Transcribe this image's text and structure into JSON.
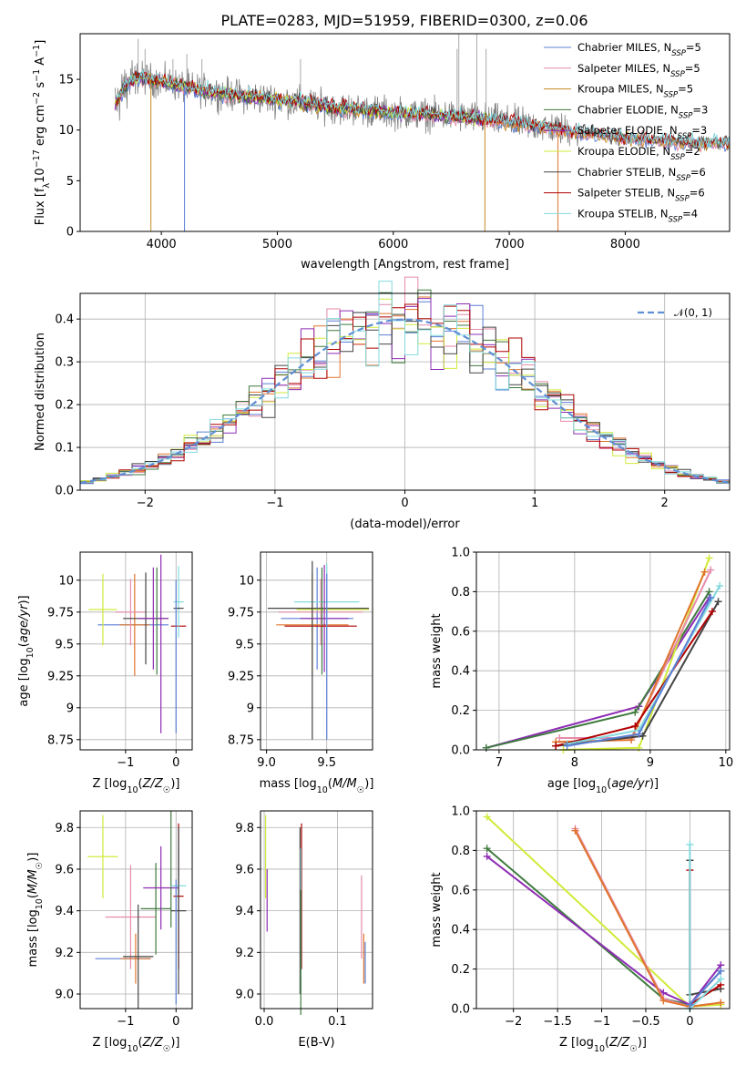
{
  "colors": {
    "chab_miles": "#5b7fd6",
    "salp_miles": "#e68aaa",
    "krou_miles": "#c48a25",
    "chab_elodie": "#3f7a3f",
    "salp_elodie": "#8e2cb4",
    "krou_elodie": "#d2ea3a",
    "chab_stelib": "#444444",
    "salp_stelib": "#b00000",
    "krou_stelib": "#82d9de",
    "orange": "#e0752d",
    "normal": "#5f8fd4",
    "data": "#808080"
  },
  "chart_data": [
    {
      "id": "spectrum",
      "type": "line",
      "title": "PLATE=0283, MJD=51959, FIBERID=0300, z=0.06",
      "xlabel": "wavelength [Angstrom, rest frame]",
      "ylabel": "Flux [f_λ 10^-17 erg cm^-2 s^-1 A^-1]",
      "xlim": [
        3300,
        8900
      ],
      "ylim": [
        0,
        19.5
      ],
      "xticks": [
        4000,
        5000,
        6000,
        7000,
        8000
      ],
      "yticks": [
        0,
        5,
        10,
        15
      ],
      "legend": [
        {
          "label": "Chabrier MILES, N",
          "sub": "SSP",
          "suffix": "=5",
          "color": "chab_miles"
        },
        {
          "label": "Salpeter MILES, N",
          "sub": "SSP",
          "suffix": "=5",
          "color": "salp_miles"
        },
        {
          "label": "Kroupa MILES, N",
          "sub": "SSP",
          "suffix": "=5",
          "color": "krou_miles"
        },
        {
          "label": "Chabrier ELODIE, N",
          "sub": "SSP",
          "suffix": "=3",
          "color": "chab_elodie"
        },
        {
          "label": "Salpeter ELODIE, N",
          "sub": "SSP",
          "suffix": "=3",
          "color": "salp_elodie"
        },
        {
          "label": "Kroupa ELODIE, N",
          "sub": "SSP",
          "suffix": "=2",
          "color": "krou_elodie"
        },
        {
          "label": "Chabrier STELIB, N",
          "sub": "SSP",
          "suffix": "=6",
          "color": "chab_stelib"
        },
        {
          "label": "Salpeter STELIB, N",
          "sub": "SSP",
          "suffix": "=6",
          "color": "salp_stelib"
        },
        {
          "label": "Kroupa STELIB, N",
          "sub": "SSP",
          "suffix": "=4",
          "color": "krou_stelib"
        }
      ],
      "continuum": [
        [
          3600,
          12.5
        ],
        [
          3700,
          14.5
        ],
        [
          3800,
          15.2
        ],
        [
          4000,
          14.8
        ],
        [
          4300,
          14.0
        ],
        [
          4600,
          13.5
        ],
        [
          5000,
          13.0
        ],
        [
          5500,
          12.2
        ],
        [
          6000,
          11.7
        ],
        [
          6500,
          11.4
        ],
        [
          7000,
          10.8
        ],
        [
          7500,
          10.0
        ],
        [
          8000,
          9.2
        ],
        [
          8500,
          8.8
        ],
        [
          8900,
          8.7
        ]
      ]
    },
    {
      "id": "residuals",
      "type": "step-histogram",
      "xlabel": "(data-model)/error",
      "ylabel": "Normed distribution",
      "xlim": [
        -2.5,
        2.5
      ],
      "ylim": [
        0,
        0.46
      ],
      "xticks": [
        -2,
        -1,
        0,
        1,
        2
      ],
      "yticks": [
        0.0,
        0.1,
        0.2,
        0.3,
        0.4
      ],
      "legend_label": "𝒩(0, 1)",
      "gaussian": {
        "mean": 0,
        "sigma": 1,
        "color": "normal"
      },
      "bin_width": 0.1
    },
    {
      "id": "age_vs_Z",
      "type": "errorbar",
      "xlabel": "Z [log10(Z/Z☉)]",
      "ylabel": "age [log10(age/yr)]",
      "xlim": [
        -1.9,
        0.32
      ],
      "ylim": [
        8.67,
        10.22
      ],
      "xticks": [
        -1,
        0
      ],
      "yticks": [
        8.75,
        9.0,
        9.25,
        9.5,
        9.75,
        10.0
      ],
      "points": [
        {
          "c": "chab_miles",
          "x": -0.85,
          "xerr": 0.7,
          "y": 9.65,
          "yerr": 0.0
        },
        {
          "c": "krou_elodie",
          "x": -1.45,
          "xerr": 0.28,
          "y": 9.77,
          "yerr": 0.28
        },
        {
          "c": "orange",
          "x": -0.82,
          "xerr": 0.3,
          "y": 9.65,
          "yerr": 0.4
        },
        {
          "c": "salp_miles",
          "x": -0.9,
          "xerr": 0.3,
          "y": 9.75,
          "yerr": 0.26
        },
        {
          "c": "chab_stelib",
          "x": -0.6,
          "xerr": 0.45,
          "y": 9.7,
          "yerr": 0.36
        },
        {
          "c": "salp_elodie",
          "x": -0.45,
          "xerr": 0.3,
          "y": 9.7,
          "yerr": 0.4
        },
        {
          "c": "chab_elodie",
          "x": -0.38,
          "xerr": 0.0,
          "y": 9.68,
          "yerr": 0.42
        },
        {
          "c": "salp_elodie",
          "x": -0.3,
          "xerr": 0.0,
          "y": 9.5,
          "yerr": 0.7
        },
        {
          "c": "salp_stelib",
          "x": 0.05,
          "xerr": 0.15,
          "y": 9.64,
          "yerr": 0.0
        },
        {
          "c": "krou_stelib",
          "x": 0.05,
          "xerr": 0.1,
          "y": 9.83,
          "yerr": 0.28
        },
        {
          "c": "chab_stelib",
          "x": 0.05,
          "xerr": 0.1,
          "y": 9.78,
          "yerr": 0.0
        },
        {
          "c": "chab_miles",
          "x": 0.0,
          "xerr": 0.0,
          "y": 9.4,
          "yerr": 0.6
        }
      ]
    },
    {
      "id": "age_vs_mass",
      "type": "errorbar",
      "xlabel": "mass [log10(M/M☉)]",
      "ylabel": "",
      "xlim": [
        8.95,
        9.88
      ],
      "ylim": [
        8.67,
        10.22
      ],
      "xticks": [
        9.0,
        9.5
      ],
      "yticks": [
        8.75,
        9.0,
        9.25,
        9.5,
        9.75,
        10.0
      ],
      "points": [
        {
          "c": "chab_miles",
          "x": 9.42,
          "xerr": 0.3,
          "y": 9.7,
          "yerr": 0.4
        },
        {
          "c": "orange",
          "x": 9.38,
          "xerr": 0.3,
          "y": 9.65,
          "yerr": 0.4
        },
        {
          "c": "salp_miles",
          "x": 9.45,
          "xerr": 0.35,
          "y": 9.75,
          "yerr": 0.26
        },
        {
          "c": "krou_elodie",
          "x": 9.55,
          "xerr": 0.3,
          "y": 9.77,
          "yerr": 0.0
        },
        {
          "c": "krou_stelib",
          "x": 9.5,
          "xerr": 0.27,
          "y": 9.83,
          "yerr": 0.3
        },
        {
          "c": "chab_stelib",
          "x": 9.43,
          "xerr": 0.42,
          "y": 9.78,
          "yerr": 0.0
        },
        {
          "c": "salp_elodie",
          "x": 9.48,
          "xerr": 0.2,
          "y": 9.7,
          "yerr": 0.42
        },
        {
          "c": "chab_elodie",
          "x": 9.46,
          "xerr": 0.0,
          "y": 9.68,
          "yerr": 0.42
        },
        {
          "c": "salp_stelib",
          "x": 9.45,
          "xerr": 0.3,
          "y": 9.64,
          "yerr": 0.0
        },
        {
          "c": "chab_stelib",
          "x": 9.38,
          "xerr": 0.0,
          "y": 9.45,
          "yerr": 0.7
        },
        {
          "c": "chab_miles",
          "x": 9.5,
          "xerr": 0.0,
          "y": 9.4,
          "yerr": 0.65
        }
      ]
    },
    {
      "id": "mass_weight_vs_age",
      "type": "line",
      "xlabel": "age [log10(age/yr)]",
      "ylabel": "mass weight",
      "xlim": [
        6.7,
        10.05
      ],
      "ylim": [
        0,
        1.0
      ],
      "xticks": [
        7,
        8,
        9,
        10
      ],
      "yticks": [
        0.0,
        0.2,
        0.4,
        0.6,
        0.8,
        1.0
      ],
      "series": [
        {
          "c": "salp_elodie",
          "x": [
            6.83,
            8.85,
            9.78
          ],
          "y": [
            0.01,
            0.22,
            0.77
          ]
        },
        {
          "c": "chab_elodie",
          "x": [
            6.83,
            8.8,
            9.78
          ],
          "y": [
            0.01,
            0.19,
            0.8
          ]
        },
        {
          "c": "krou_elodie",
          "x": [
            7.85,
            8.85,
            9.78
          ],
          "y": [
            0.0,
            0.01,
            0.97
          ]
        },
        {
          "c": "salp_miles",
          "x": [
            7.8,
            8.75,
            9.8
          ],
          "y": [
            0.06,
            0.06,
            0.91
          ]
        },
        {
          "c": "orange",
          "x": [
            7.75,
            8.75,
            9.72
          ],
          "y": [
            0.04,
            0.05,
            0.9
          ]
        },
        {
          "c": "chab_stelib",
          "x": [
            7.75,
            8.9,
            9.9
          ],
          "y": [
            0.02,
            0.07,
            0.75
          ]
        },
        {
          "c": "salp_stelib",
          "x": [
            7.75,
            8.8,
            9.82
          ],
          "y": [
            0.02,
            0.12,
            0.7
          ]
        },
        {
          "c": "krou_stelib",
          "x": [
            7.9,
            8.85,
            9.92
          ],
          "y": [
            0.03,
            0.1,
            0.83
          ]
        },
        {
          "c": "chab_miles",
          "x": [
            7.9,
            8.85,
            9.8
          ],
          "y": [
            0.02,
            0.08,
            0.77
          ]
        }
      ]
    },
    {
      "id": "mass_vs_Z",
      "type": "errorbar",
      "xlabel": "Z [log10(Z/Z☉)]",
      "ylabel": "mass [log10(M/M☉)]",
      "xlim": [
        -1.9,
        0.32
      ],
      "ylim": [
        8.93,
        9.88
      ],
      "xticks": [
        -1,
        0
      ],
      "yticks": [
        9.0,
        9.2,
        9.4,
        9.6,
        9.8
      ],
      "points": [
        {
          "c": "krou_elodie",
          "x": -1.45,
          "xerr": 0.3,
          "y": 9.66,
          "yerr": 0.2
        },
        {
          "c": "chab_miles",
          "x": -1.05,
          "xerr": 0.55,
          "y": 9.17,
          "yerr": 0.0
        },
        {
          "c": "salp_miles",
          "x": -0.9,
          "xerr": 0.5,
          "y": 9.37,
          "yerr": 0.25
        },
        {
          "c": "orange",
          "x": -0.8,
          "xerr": 0.3,
          "y": 9.17,
          "yerr": 0.12
        },
        {
          "c": "chab_stelib",
          "x": -0.75,
          "xerr": 0.3,
          "y": 9.18,
          "yerr": 0.25
        },
        {
          "c": "chab_elodie",
          "x": -0.4,
          "xerr": 0.3,
          "y": 9.41,
          "yerr": 0.22
        },
        {
          "c": "salp_elodie",
          "x": -0.3,
          "xerr": 0.35,
          "y": 9.51,
          "yerr": 0.2
        },
        {
          "c": "chab_elodie",
          "x": -0.1,
          "xerr": 0.0,
          "y": 9.6,
          "yerr": 0.28
        },
        {
          "c": "salp_stelib",
          "x": 0.05,
          "xerr": 0.1,
          "y": 9.47,
          "yerr": 0.35
        },
        {
          "c": "krou_stelib",
          "x": 0.05,
          "xerr": 0.15,
          "y": 9.52,
          "yerr": 0.2
        },
        {
          "c": "chab_stelib",
          "x": 0.05,
          "xerr": 0.15,
          "y": 9.4,
          "yerr": 0.4
        },
        {
          "c": "chab_miles",
          "x": 0.0,
          "xerr": 0.0,
          "y": 9.25,
          "yerr": 0.3
        }
      ]
    },
    {
      "id": "mass_vs_ebv",
      "type": "errorbar",
      "xlabel": "E(B-V)",
      "ylabel": "",
      "xlim": [
        -0.005,
        0.148
      ],
      "ylim": [
        8.93,
        9.88
      ],
      "xticks": [
        0.0,
        0.1
      ],
      "yticks": [
        9.0,
        9.2,
        9.4,
        9.6,
        9.8
      ],
      "points": [
        {
          "c": "krou_elodie",
          "x": 0.002,
          "xerr": 0.0,
          "y": 9.66,
          "yerr": 0.2
        },
        {
          "c": "salp_elodie",
          "x": 0.004,
          "xerr": 0.0,
          "y": 9.45,
          "yerr": 0.15
        },
        {
          "c": "chab_stelib",
          "x": 0.049,
          "xerr": 0.0,
          "y": 9.4,
          "yerr": 0.4
        },
        {
          "c": "salp_stelib",
          "x": 0.051,
          "xerr": 0.0,
          "y": 9.47,
          "yerr": 0.35
        },
        {
          "c": "krou_stelib",
          "x": 0.05,
          "xerr": 0.0,
          "y": 9.35,
          "yerr": 0.35
        },
        {
          "c": "chab_elodie",
          "x": 0.05,
          "xerr": 0.0,
          "y": 9.2,
          "yerr": 0.3
        },
        {
          "c": "salp_miles",
          "x": 0.133,
          "xerr": 0.0,
          "y": 9.37,
          "yerr": 0.2
        },
        {
          "c": "orange",
          "x": 0.136,
          "xerr": 0.0,
          "y": 9.17,
          "yerr": 0.12
        },
        {
          "c": "chab_miles",
          "x": 0.138,
          "xerr": 0.0,
          "y": 9.15,
          "yerr": 0.1
        }
      ]
    },
    {
      "id": "mass_weight_vs_Z",
      "type": "line",
      "xlabel": "Z [log10(Z/Z☉)]",
      "ylabel": "mass weight",
      "xlim": [
        -2.42,
        0.45
      ],
      "ylim": [
        0,
        1.0
      ],
      "xticks": [
        -2.0,
        -1.5,
        -1.0,
        -0.5,
        0.0
      ],
      "yticks": [
        0.0,
        0.2,
        0.4,
        0.6,
        0.8,
        1.0
      ],
      "series": [
        {
          "c": "krou_elodie",
          "x": [
            -2.3,
            0.0,
            0.35
          ],
          "y": [
            0.97,
            0.01,
            0.02
          ]
        },
        {
          "c": "chab_elodie",
          "x": [
            -2.3,
            -0.3,
            0.0,
            0.35
          ],
          "y": [
            0.81,
            0.05,
            0.02,
            0.19
          ]
        },
        {
          "c": "salp_elodie",
          "x": [
            -2.3,
            -0.3,
            0.0,
            0.35
          ],
          "y": [
            0.77,
            0.08,
            0.02,
            0.22
          ]
        },
        {
          "c": "salp_miles",
          "x": [
            -1.3,
            -0.3,
            0.0,
            0.35
          ],
          "y": [
            0.91,
            0.05,
            0.01,
            0.03
          ]
        },
        {
          "c": "orange",
          "x": [
            -1.3,
            -0.3,
            0.0,
            0.35
          ],
          "y": [
            0.9,
            0.04,
            0.01,
            0.03
          ]
        },
        {
          "c": "chab_stelib",
          "x": [
            0.0,
            0.0,
            0.35
          ],
          "y": [
            0.75,
            0.07,
            0.1
          ]
        },
        {
          "c": "salp_stelib",
          "x": [
            0.0,
            0.0,
            0.35
          ],
          "y": [
            0.7,
            0.02,
            0.12
          ]
        },
        {
          "c": "krou_stelib",
          "x": [
            0.0,
            0.0,
            0.35
          ],
          "y": [
            0.83,
            0.0,
            0.15
          ]
        },
        {
          "c": "chab_miles",
          "x": [
            0.0,
            0.35
          ],
          "y": [
            0.02,
            0.19
          ]
        }
      ]
    }
  ]
}
